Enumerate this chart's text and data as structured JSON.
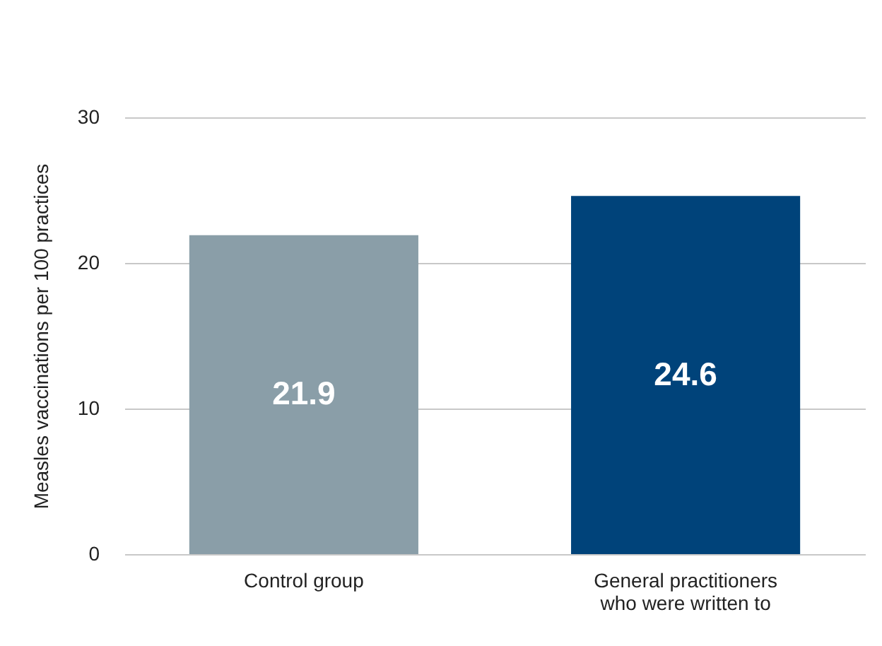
{
  "chart_data": {
    "type": "bar",
    "ylabel": "Measles vaccinations per 100 practices",
    "categories": [
      "Control group",
      "General practitioners who were written to"
    ],
    "values": [
      21.9,
      24.6
    ],
    "colors": [
      "#8a9ea8",
      "#00437a"
    ],
    "ylim": [
      0,
      30
    ],
    "yticks": [
      0,
      10,
      20,
      30
    ],
    "grid": "y",
    "data_labels": true
  }
}
